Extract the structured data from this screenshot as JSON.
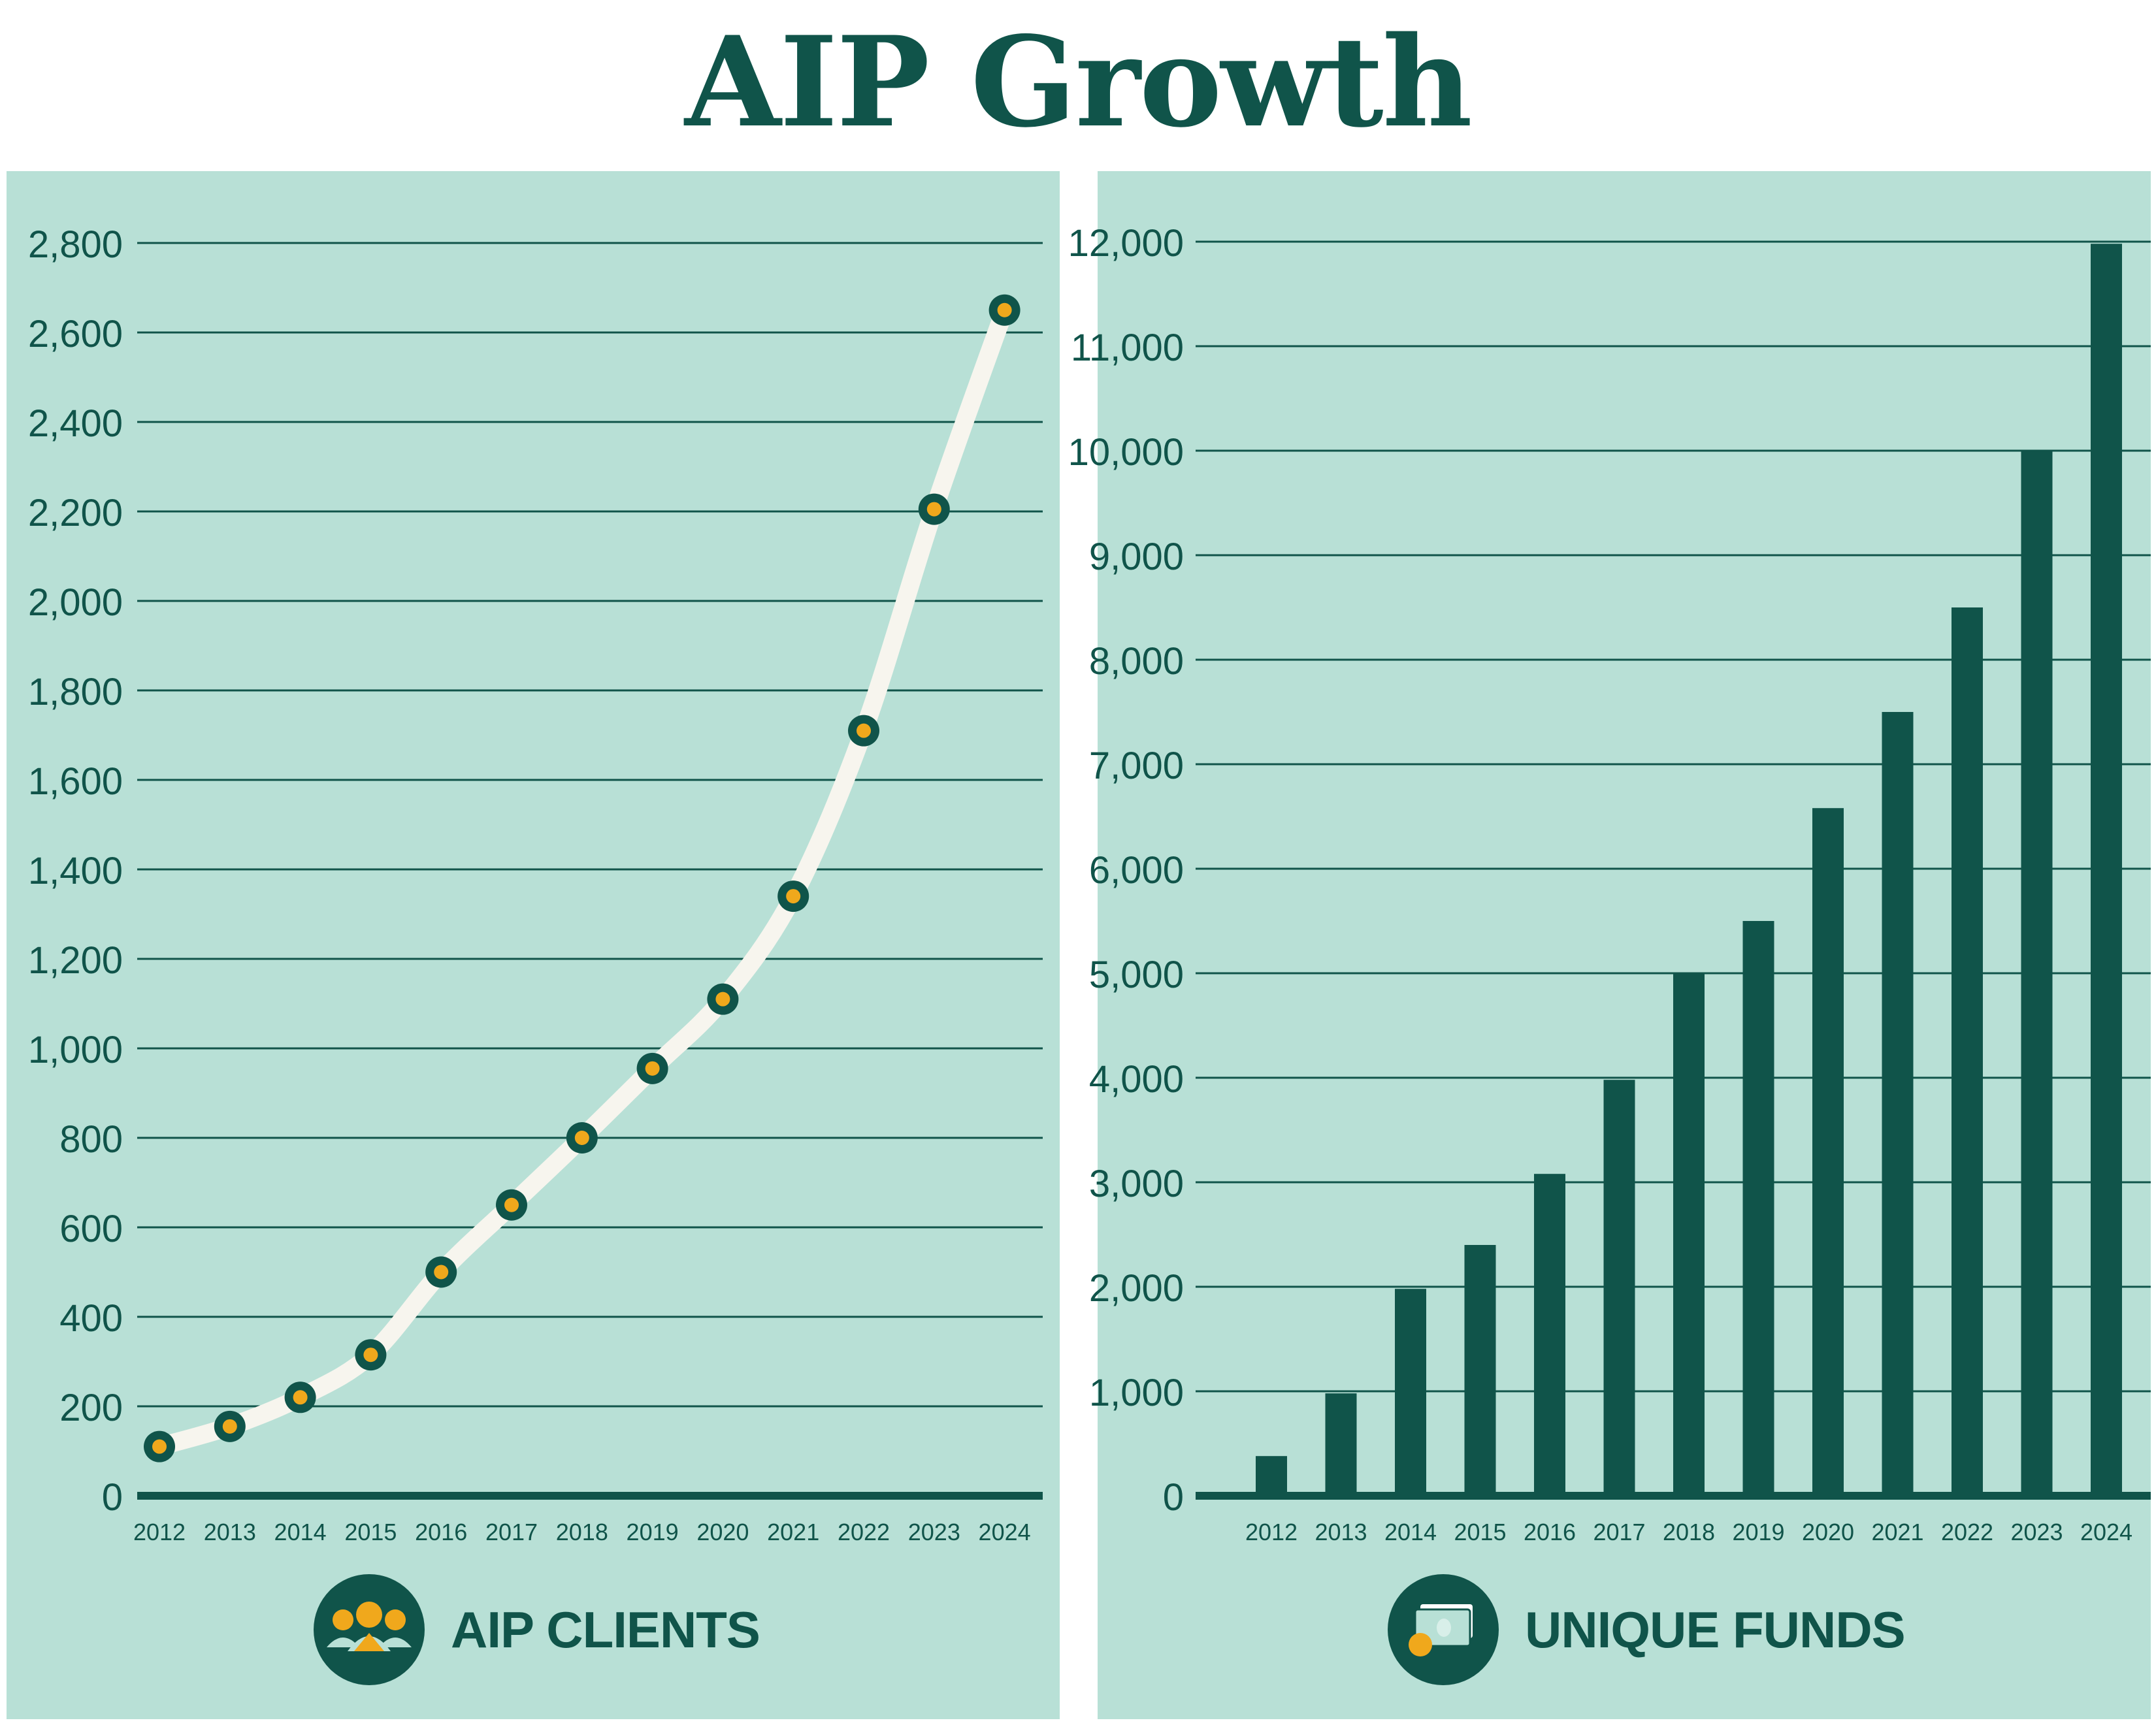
{
  "title": "AIP Growth",
  "colors": {
    "dark_green": "#10544a",
    "panel_bg": "#b8e0d6",
    "line_cream": "#f7f5ee",
    "marker_orange": "#f0a81c",
    "white": "#ffffff"
  },
  "left_panel": {
    "label": "AIP CLIENTS",
    "icon": "people-group-icon"
  },
  "right_panel": {
    "label": "UNIQUE FUNDS",
    "icon": "money-stack-icon"
  },
  "chart_data": [
    {
      "type": "line",
      "title": "",
      "legend_label": "AIP CLIENTS",
      "xlabel": "",
      "ylabel": "",
      "x": [
        "2012",
        "2013",
        "2014",
        "2015",
        "2016",
        "2017",
        "2018",
        "2019",
        "2020",
        "2021",
        "2022",
        "2023",
        "2024"
      ],
      "series": [
        {
          "values": [
            110,
            155,
            220,
            315,
            500,
            650,
            800,
            955,
            1110,
            1340,
            1710,
            2205,
            2650
          ]
        }
      ],
      "ylim": [
        0,
        2800
      ],
      "yticks": [
        0,
        200,
        400,
        600,
        800,
        1000,
        1200,
        1400,
        1600,
        1800,
        2000,
        2200,
        2400,
        2600,
        2800
      ],
      "ytick_labels": [
        "0",
        "200",
        "400",
        "600",
        "800",
        "1,000",
        "1,200",
        "1,400",
        "1,600",
        "1,800",
        "2,000",
        "2,200",
        "2,400",
        "2,600",
        "2,800"
      ],
      "grid": true
    },
    {
      "type": "bar",
      "title": "",
      "legend_label": "UNIQUE FUNDS",
      "xlabel": "",
      "ylabel": "",
      "categories": [
        "2012",
        "2013",
        "2014",
        "2015",
        "2016",
        "2017",
        "2018",
        "2019",
        "2020",
        "2021",
        "2022",
        "2023",
        "2024"
      ],
      "values": [
        380,
        980,
        1980,
        2400,
        3080,
        3980,
        5000,
        5500,
        6580,
        7500,
        8500,
        10000,
        11980
      ],
      "ylim": [
        0,
        12000
      ],
      "yticks": [
        0,
        1000,
        2000,
        3000,
        4000,
        5000,
        6000,
        7000,
        8000,
        9000,
        10000,
        11000,
        12000
      ],
      "ytick_labels": [
        "0",
        "1,000",
        "2,000",
        "3,000",
        "4,000",
        "5,000",
        "6,000",
        "7,000",
        "8,000",
        "9,000",
        "10,000",
        "11,000",
        "12,000"
      ],
      "grid": true
    }
  ]
}
